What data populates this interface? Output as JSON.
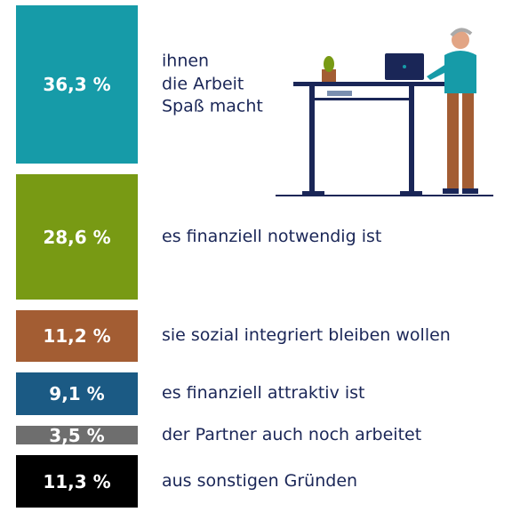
{
  "chart_data": {
    "type": "block",
    "categories": [
      "ihnen\ndie Arbeit\nSpaß macht",
      "es finanziell notwendig ist",
      "sie sozial integriert bleiben wollen",
      "es finanziell attraktiv ist",
      "der Partner auch noch arbeitet",
      "aus sonstigen Gründen"
    ],
    "values": [
      36.3,
      28.6,
      11.2,
      9.1,
      3.5,
      11.3
    ],
    "value_labels": [
      "36,3 %",
      "28,6 %",
      "11,2 %",
      "9,1 %",
      "3,5 %",
      "11,3 %"
    ],
    "colors": [
      "#169ba8",
      "#789a14",
      "#a35d33",
      "#1b5a84",
      "#6e6e6e",
      "#000000"
    ]
  }
}
